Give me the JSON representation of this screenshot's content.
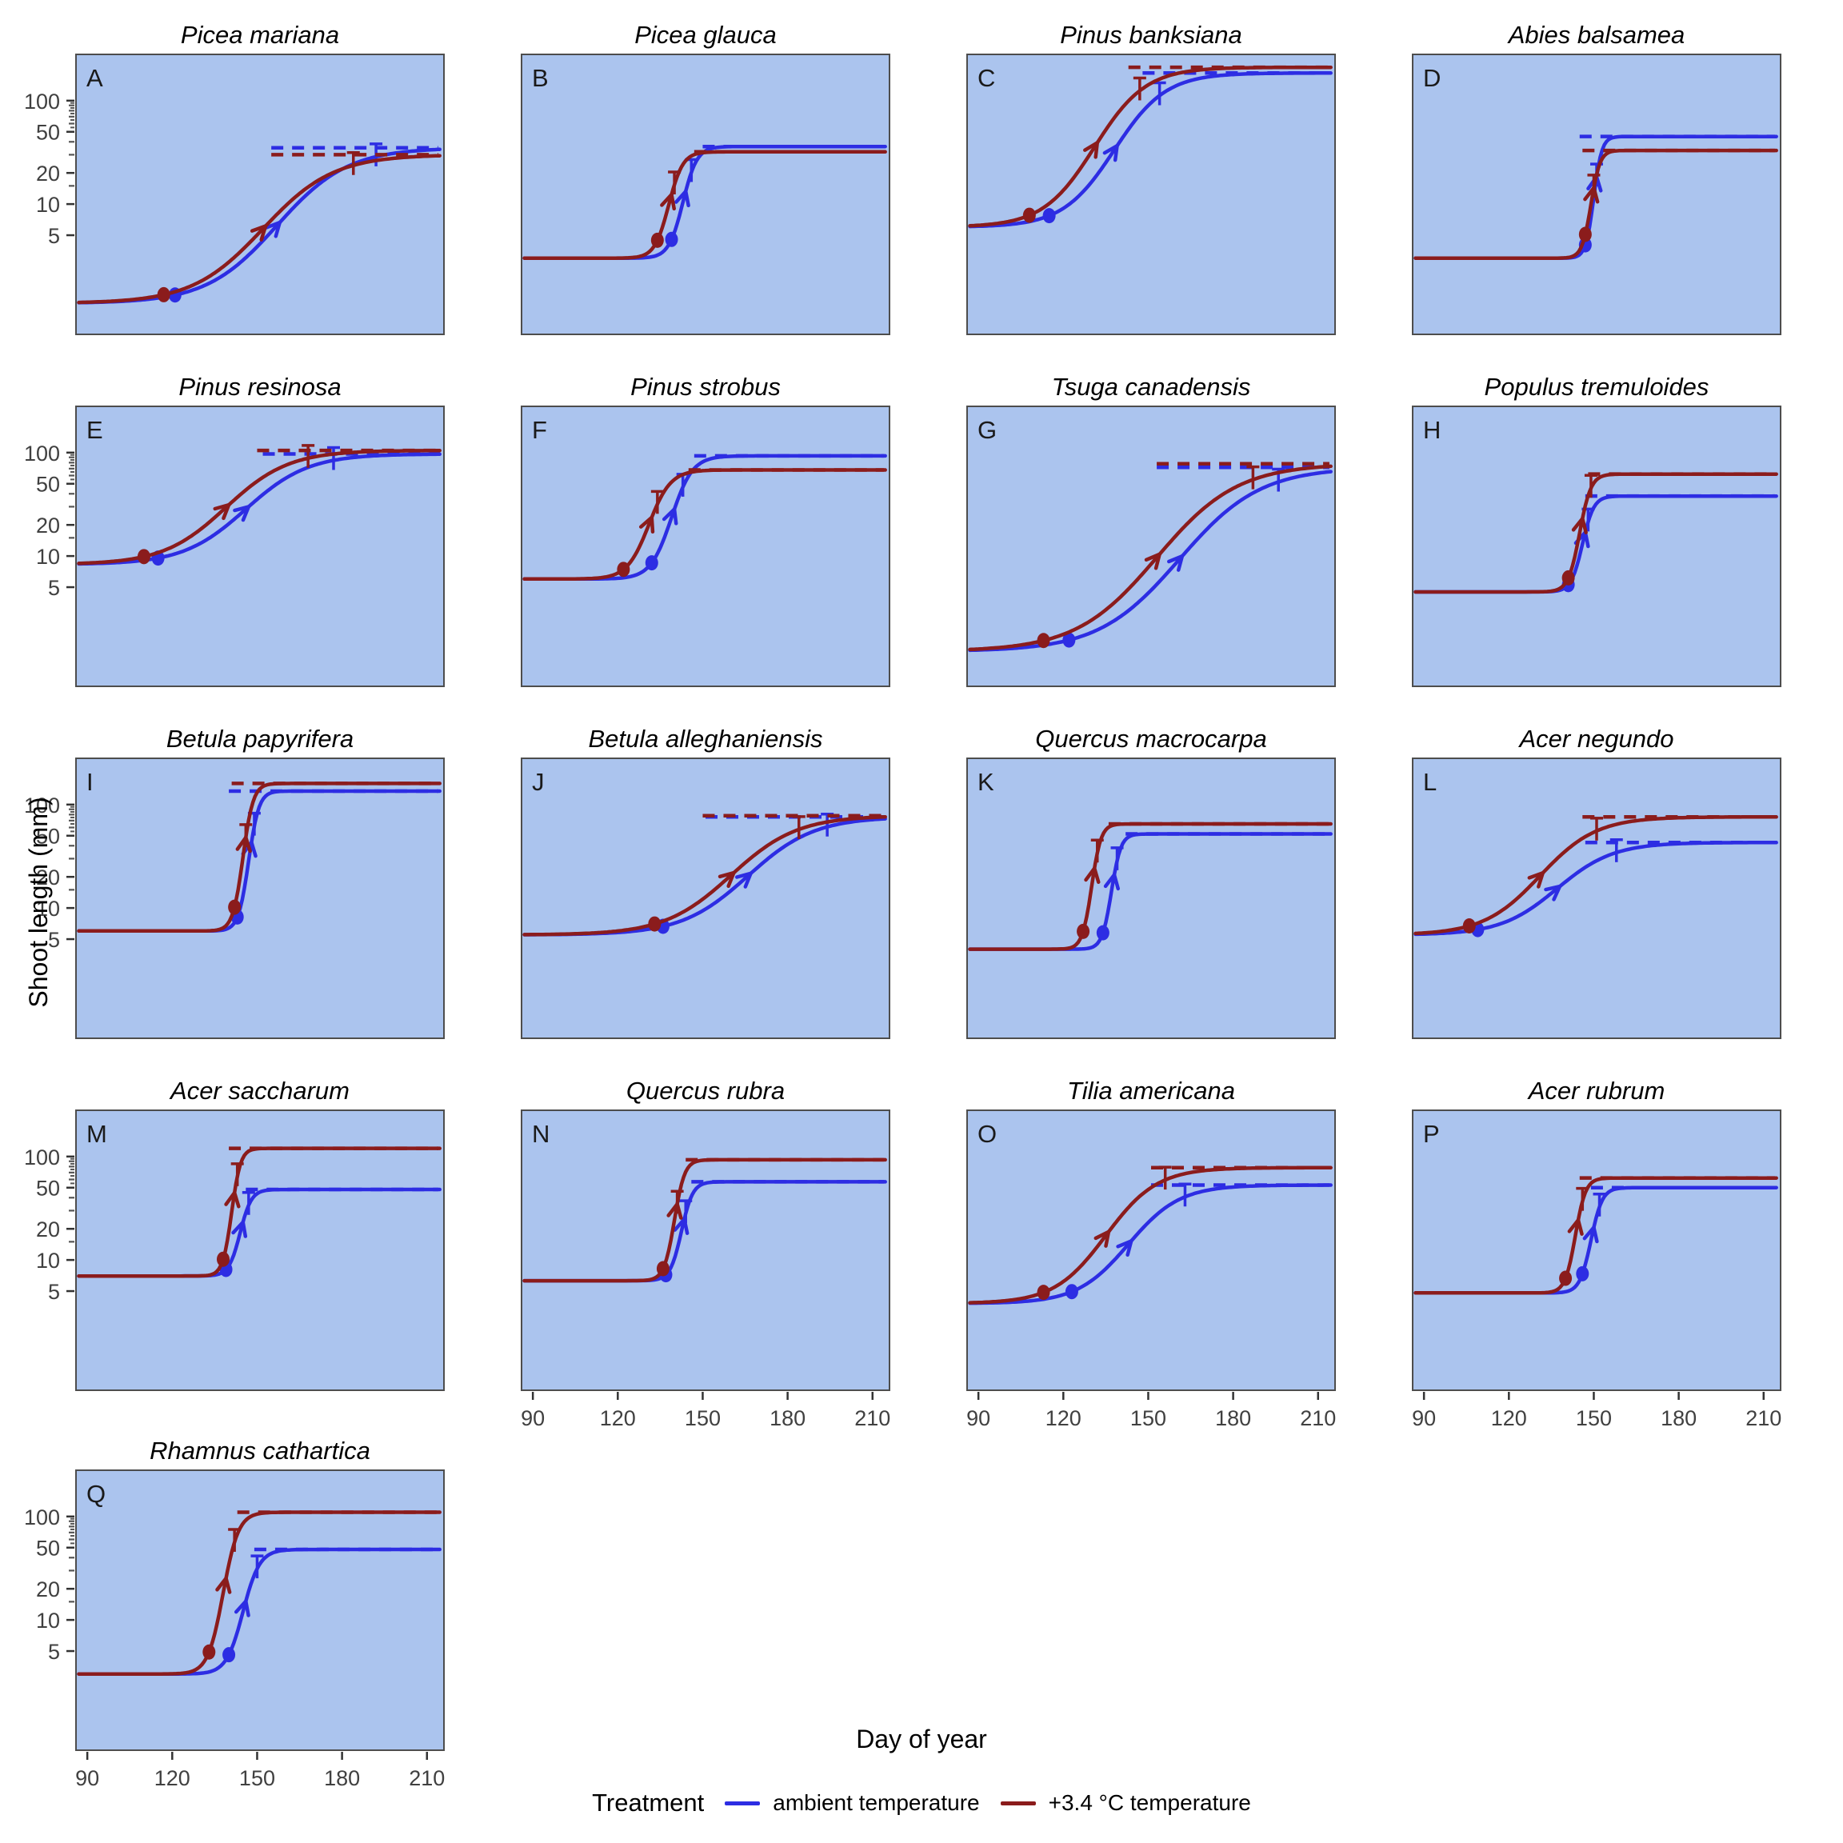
{
  "figure": {
    "ylabel": "Shoot length (mm)",
    "xlabel": "Day of year",
    "colors": {
      "panel_background": "#abc4ee",
      "panel_border": "#4d4d4d",
      "axis_text": "#404040",
      "title_text": "#000000",
      "letter_text": "#1a1a1a"
    },
    "legend": {
      "title": "Treatment",
      "items": [
        {
          "key": "ambient",
          "label": "ambient temperature",
          "color": "#2d2de3"
        },
        {
          "key": "warmed",
          "label": "+3.4 °C temperature",
          "color": "#8b1c1c"
        }
      ]
    }
  },
  "chart_data": {
    "type": "line",
    "x_label": "Day of year",
    "y_label": "Shoot length (mm)",
    "y_scale": "log10",
    "x_range": [
      86,
      216
    ],
    "y_range": [
      0.55,
      280
    ],
    "x_ticks": [
      90,
      120,
      150,
      180,
      210
    ],
    "y_ticks": [
      5,
      10,
      20,
      50,
      100
    ],
    "y_minor_ticks": [
      15,
      30,
      40,
      60,
      70,
      80,
      90
    ],
    "y_fine_ticks": [
      55,
      65,
      75,
      85,
      95
    ],
    "series_colors": {
      "ambient": "#2d2de3",
      "warmed": "#8b1c1c"
    },
    "series_names": {
      "ambient": "ambient temperature",
      "warmed": "+3.4 °C temperature"
    },
    "panels": [
      {
        "letter": "A",
        "title": "Picea mariana",
        "show_x_axis": false,
        "show_y_axis": true,
        "lower": 1.1,
        "series": [
          {
            "treatment": "ambient",
            "upper": 35,
            "mid": 157,
            "rate": 0.08,
            "dot_day": 121,
            "tick_day": 192,
            "dash_start": 155
          },
          {
            "treatment": "warmed",
            "upper": 30,
            "mid": 152,
            "rate": 0.08,
            "dot_day": 117,
            "tick_day": 184,
            "dash_start": 155
          }
        ]
      },
      {
        "letter": "B",
        "title": "Picea glauca",
        "show_x_axis": false,
        "show_y_axis": false,
        "lower": 3,
        "series": [
          {
            "treatment": "ambient",
            "upper": 36,
            "mid": 143,
            "rate": 0.4,
            "dot_day": 139,
            "tick_day": 146,
            "dash_start": 150
          },
          {
            "treatment": "warmed",
            "upper": 32,
            "mid": 138,
            "rate": 0.4,
            "dot_day": 134,
            "tick_day": 140,
            "dash_start": 147
          }
        ]
      },
      {
        "letter": "C",
        "title": "Pinus banksiana",
        "show_x_axis": false,
        "show_y_axis": false,
        "lower": 6,
        "series": [
          {
            "treatment": "ambient",
            "upper": 185,
            "mid": 138,
            "rate": 0.11,
            "dot_day": 115,
            "tick_day": 154,
            "dash_start": 148
          },
          {
            "treatment": "warmed",
            "upper": 210,
            "mid": 131,
            "rate": 0.11,
            "dot_day": 108,
            "tick_day": 147,
            "dash_start": 143
          }
        ]
      },
      {
        "letter": "D",
        "title": "Abies balsamea",
        "show_x_axis": false,
        "show_y_axis": false,
        "lower": 3,
        "series": [
          {
            "treatment": "ambient",
            "upper": 45,
            "mid": 150,
            "rate": 0.7,
            "dot_day": 147,
            "tick_day": 151,
            "dash_start": 145
          },
          {
            "treatment": "warmed",
            "upper": 33,
            "mid": 149,
            "rate": 0.63,
            "dot_day": 147,
            "tick_day": 150,
            "dash_start": 146
          }
        ]
      },
      {
        "letter": "E",
        "title": "Pinus resinosa",
        "show_x_axis": false,
        "show_y_axis": true,
        "lower": 8.3,
        "series": [
          {
            "treatment": "ambient",
            "upper": 97,
            "mid": 146,
            "rate": 0.09,
            "dot_day": 115,
            "tick_day": 177,
            "dash_start": 152
          },
          {
            "treatment": "warmed",
            "upper": 105,
            "mid": 139,
            "rate": 0.09,
            "dot_day": 110,
            "tick_day": 168,
            "dash_start": 150
          }
        ]
      },
      {
        "letter": "F",
        "title": "Pinus strobus",
        "show_x_axis": false,
        "show_y_axis": false,
        "lower": 6,
        "series": [
          {
            "treatment": "ambient",
            "upper": 93,
            "mid": 139,
            "rate": 0.27,
            "dot_day": 132,
            "tick_day": 143,
            "dash_start": 147
          },
          {
            "treatment": "warmed",
            "upper": 68,
            "mid": 131,
            "rate": 0.26,
            "dot_day": 122,
            "tick_day": 134,
            "dash_start": 145
          }
        ]
      },
      {
        "letter": "G",
        "title": "Tsuga canadensis",
        "show_x_axis": false,
        "show_y_axis": false,
        "lower": 1.2,
        "series": [
          {
            "treatment": "ambient",
            "upper": 72,
            "mid": 161,
            "rate": 0.07,
            "dot_day": 122,
            "tick_day": 196,
            "dash_start": 153
          },
          {
            "treatment": "warmed",
            "upper": 78,
            "mid": 153,
            "rate": 0.07,
            "dot_day": 113,
            "tick_day": 187,
            "dash_start": 153
          }
        ]
      },
      {
        "letter": "H",
        "title": "Populus tremuloides",
        "show_x_axis": false,
        "show_y_axis": false,
        "lower": 4.5,
        "series": [
          {
            "treatment": "ambient",
            "upper": 38,
            "mid": 146,
            "rate": 0.5,
            "dot_day": 141,
            "tick_day": 148,
            "dash_start": 147
          },
          {
            "treatment": "warmed",
            "upper": 62,
            "mid": 145,
            "rate": 0.5,
            "dot_day": 141,
            "tick_day": 149,
            "dash_start": 148
          }
        ]
      },
      {
        "letter": "I",
        "title": "Betula papyrifera",
        "show_x_axis": false,
        "show_y_axis": true,
        "lower": 6,
        "series": [
          {
            "treatment": "ambient",
            "upper": 135,
            "mid": 147,
            "rate": 0.55,
            "dot_day": 143,
            "tick_day": 149,
            "dash_start": 140
          },
          {
            "treatment": "warmed",
            "upper": 160,
            "mid": 145,
            "rate": 0.55,
            "dot_day": 142,
            "tick_day": 146,
            "dash_start": 141
          }
        ]
      },
      {
        "letter": "J",
        "title": "Betula alleghaniensis",
        "show_x_axis": false,
        "show_y_axis": false,
        "lower": 5.5,
        "series": [
          {
            "treatment": "ambient",
            "upper": 76,
            "mid": 166,
            "rate": 0.085,
            "dot_day": 136,
            "tick_day": 194,
            "dash_start": 151
          },
          {
            "treatment": "warmed",
            "upper": 78,
            "mid": 160,
            "rate": 0.085,
            "dot_day": 133,
            "tick_day": 184,
            "dash_start": 150
          }
        ]
      },
      {
        "letter": "K",
        "title": "Quercus macrocarpa",
        "show_x_axis": false,
        "show_y_axis": false,
        "lower": 4,
        "series": [
          {
            "treatment": "ambient",
            "upper": 52,
            "mid": 137,
            "rate": 0.6,
            "dot_day": 134,
            "tick_day": 139,
            "dash_start": 142
          },
          {
            "treatment": "warmed",
            "upper": 65,
            "mid": 130,
            "rate": 0.6,
            "dot_day": 127,
            "tick_day": 132,
            "dash_start": 136
          }
        ]
      },
      {
        "letter": "L",
        "title": "Acer negundo",
        "show_x_axis": false,
        "show_y_axis": false,
        "lower": 5.5,
        "series": [
          {
            "treatment": "ambient",
            "upper": 43,
            "mid": 137,
            "rate": 0.1,
            "dot_day": 109,
            "tick_day": 158,
            "dash_start": 147
          },
          {
            "treatment": "warmed",
            "upper": 76,
            "mid": 131,
            "rate": 0.1,
            "dot_day": 106,
            "tick_day": 151,
            "dash_start": 146
          }
        ]
      },
      {
        "letter": "M",
        "title": "Acer saccharum",
        "show_x_axis": false,
        "show_y_axis": true,
        "lower": 7,
        "series": [
          {
            "treatment": "ambient",
            "upper": 48,
            "mid": 144,
            "rate": 0.5,
            "dot_day": 139,
            "tick_day": 147,
            "dash_start": 146
          },
          {
            "treatment": "warmed",
            "upper": 120,
            "mid": 141,
            "rate": 0.63,
            "dot_day": 138,
            "tick_day": 143,
            "dash_start": 140
          }
        ]
      },
      {
        "letter": "N",
        "title": "Quercus rubra",
        "show_x_axis": true,
        "show_y_axis": false,
        "lower": 6.3,
        "series": [
          {
            "treatment": "ambient",
            "upper": 57,
            "mid": 142.5,
            "rate": 0.5,
            "dot_day": 137,
            "tick_day": 144,
            "dash_start": 146
          },
          {
            "treatment": "warmed",
            "upper": 93,
            "mid": 140,
            "rate": 0.55,
            "dot_day": 136,
            "tick_day": 141,
            "dash_start": 144
          }
        ]
      },
      {
        "letter": "O",
        "title": "Tilia americana",
        "show_x_axis": true,
        "show_y_axis": false,
        "lower": 3.8,
        "series": [
          {
            "treatment": "ambient",
            "upper": 53,
            "mid": 143,
            "rate": 0.11,
            "dot_day": 123,
            "tick_day": 163,
            "dash_start": 151
          },
          {
            "treatment": "warmed",
            "upper": 78,
            "mid": 135,
            "rate": 0.11,
            "dot_day": 113,
            "tick_day": 156,
            "dash_start": 151
          }
        ]
      },
      {
        "letter": "P",
        "title": "Acer rubrum",
        "show_x_axis": true,
        "show_y_axis": false,
        "lower": 4.8,
        "series": [
          {
            "treatment": "ambient",
            "upper": 50,
            "mid": 149,
            "rate": 0.5,
            "dot_day": 146,
            "tick_day": 152,
            "dash_start": 149
          },
          {
            "treatment": "warmed",
            "upper": 62,
            "mid": 143.5,
            "rate": 0.55,
            "dot_day": 140,
            "tick_day": 146,
            "dash_start": 145
          }
        ]
      },
      {
        "letter": "Q",
        "title": "Rhamnus cathartica",
        "show_x_axis": true,
        "show_y_axis": true,
        "lower": 3,
        "series": [
          {
            "treatment": "ambient",
            "upper": 48,
            "mid": 145,
            "rate": 0.34,
            "dot_day": 140,
            "tick_day": 150,
            "dash_start": 149
          },
          {
            "treatment": "warmed",
            "upper": 110,
            "mid": 138,
            "rate": 0.37,
            "dot_day": 133,
            "tick_day": 142,
            "dash_start": 143
          }
        ]
      }
    ]
  }
}
